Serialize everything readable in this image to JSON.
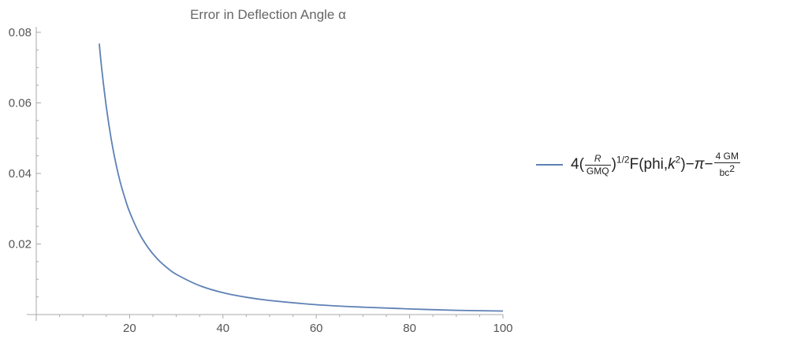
{
  "chart_data": {
    "type": "line",
    "title": "Error in Deflection Angle α",
    "xlabel": "",
    "ylabel": "",
    "xlim": [
      0,
      100
    ],
    "ylim": [
      0,
      0.08
    ],
    "x_ticks": [
      20,
      40,
      60,
      80,
      100
    ],
    "y_ticks": [
      0.02,
      0.04,
      0.06,
      0.08
    ],
    "x_tick_labels": [
      "20",
      "40",
      "60",
      "80",
      "100"
    ],
    "y_tick_labels": [
      "0.02",
      "0.04",
      "0.06",
      "0.08"
    ],
    "grid": false,
    "legend_position": "right",
    "series": [
      {
        "color": "#5E81B5",
        "x": [
          13.5,
          14,
          15,
          16,
          17,
          18,
          19,
          20,
          22,
          24,
          26,
          28,
          30,
          35,
          40,
          45,
          50,
          60,
          70,
          80,
          90,
          100
        ],
        "y": [
          0.0768,
          0.07,
          0.059,
          0.0502,
          0.0432,
          0.0375,
          0.033,
          0.0291,
          0.0232,
          0.0189,
          0.0157,
          0.0133,
          0.0114,
          0.0082,
          0.0062,
          0.0049,
          0.004,
          0.0028,
          0.0021,
          0.0016,
          0.0012,
          0.001
        ]
      }
    ]
  },
  "legend": {
    "four": "4(",
    "frac1_num": "R",
    "frac1_den": "GMQ",
    "close_paren": ")",
    "exp_half": "1/2",
    "f_open": "F(phi,",
    "k": "k",
    "k_exp": "2",
    "f_close": ")−",
    "pi": "π",
    "minus": "−",
    "frac2_num": "4 GM",
    "frac2_den": "bc",
    "frac2_den_exp": "2"
  }
}
